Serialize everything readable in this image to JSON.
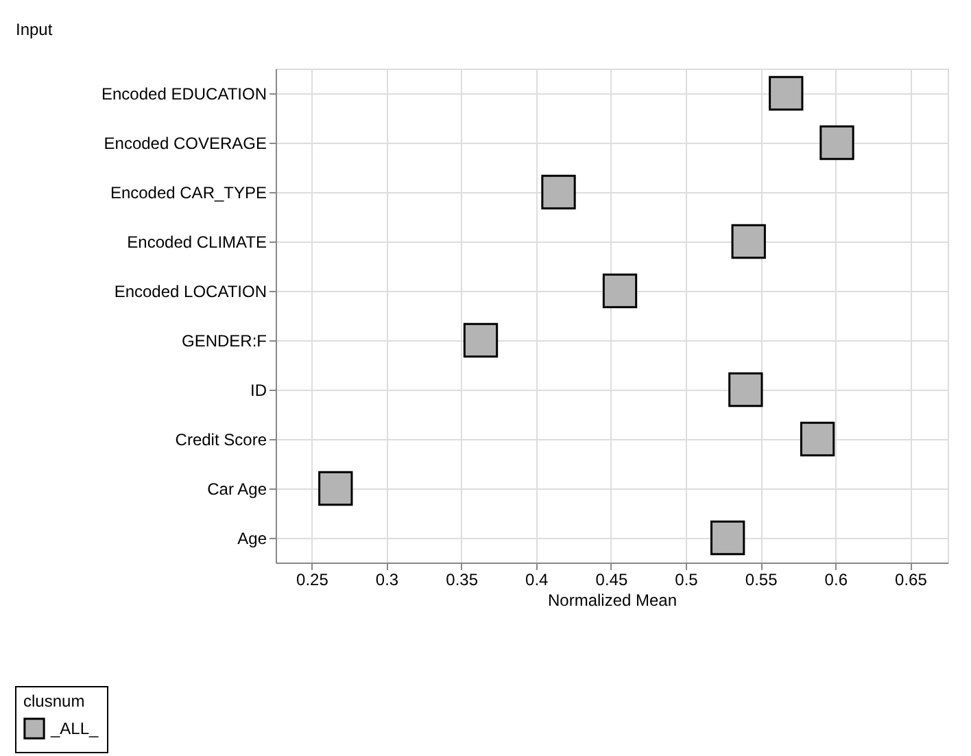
{
  "chart_data": {
    "type": "scatter",
    "xlabel": "Normalized Mean",
    "ylabel": "Input",
    "legend_title": "clusnum",
    "categories": [
      "Encoded EDUCATION",
      "Encoded COVERAGE",
      "Encoded CAR_TYPE",
      "Encoded CLIMATE",
      "Encoded LOCATION",
      "GENDER:F",
      "ID",
      "Credit Score",
      "Car Age",
      "Age"
    ],
    "series": [
      {
        "name": "_ALL_",
        "color": "#b4b4b4",
        "values": [
          0.567,
          0.601,
          0.415,
          0.542,
          0.456,
          0.363,
          0.54,
          0.588,
          0.266,
          0.528
        ]
      }
    ],
    "orientation": "horizontal",
    "xlim": [
      0.226,
      0.675
    ],
    "xticks": [
      0.25,
      0.3,
      0.35,
      0.4,
      0.45,
      0.5,
      0.55,
      0.6,
      0.65
    ],
    "grid": true,
    "legend": "bottom",
    "marker": "square"
  }
}
